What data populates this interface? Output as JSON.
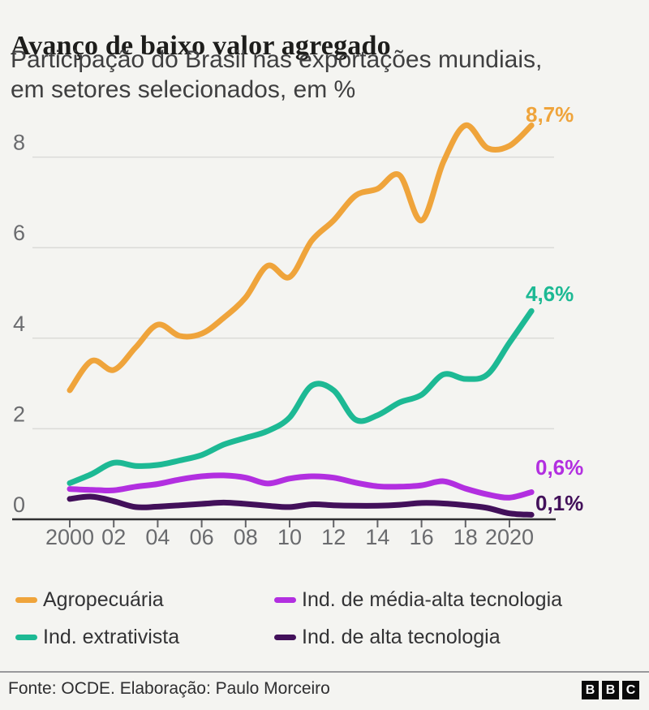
{
  "header": {
    "title": "Avanço de baixo valor agregado",
    "subtitle": "Participação do Brasil nas exportações mundiais,\nem setores selecionados, em %"
  },
  "chart_data": {
    "type": "line",
    "unit": "%",
    "x": [
      2000,
      2001,
      2002,
      2003,
      2004,
      2005,
      2006,
      2007,
      2008,
      2009,
      2010,
      2011,
      2012,
      2013,
      2014,
      2015,
      2016,
      2017,
      2018,
      2019,
      2020,
      2021
    ],
    "x_tick_labels": [
      "2000",
      "02",
      "04",
      "06",
      "08",
      "10",
      "12",
      "14",
      "16",
      "18",
      "2020"
    ],
    "y_ticks": [
      0,
      2,
      4,
      6,
      8
    ],
    "ylim": [
      0,
      9.2
    ],
    "grid": "horizontal",
    "legend_position": "bottom",
    "series": [
      {
        "name": "Agropecuária",
        "color": "#efa43b",
        "end_label": "8,7%",
        "values": [
          2.85,
          3.5,
          3.3,
          3.8,
          4.3,
          4.05,
          4.1,
          4.45,
          4.9,
          5.6,
          5.35,
          6.15,
          6.6,
          7.15,
          7.3,
          7.6,
          6.6,
          7.9,
          8.7,
          8.2,
          8.25,
          8.7
        ]
      },
      {
        "name": "Ind. extrativista",
        "color": "#1db994",
        "end_label": "4,6%",
        "values": [
          0.8,
          1.0,
          1.25,
          1.18,
          1.2,
          1.3,
          1.42,
          1.65,
          1.8,
          1.95,
          2.25,
          2.95,
          2.85,
          2.2,
          2.3,
          2.58,
          2.75,
          3.2,
          3.1,
          3.2,
          3.9,
          4.6
        ]
      },
      {
        "name": "Ind. de média-alta tecnologia",
        "color": "#b22fe0",
        "end_label": "0,6%",
        "values": [
          0.67,
          0.65,
          0.64,
          0.72,
          0.78,
          0.88,
          0.95,
          0.97,
          0.92,
          0.79,
          0.9,
          0.95,
          0.92,
          0.81,
          0.73,
          0.72,
          0.75,
          0.84,
          0.68,
          0.55,
          0.48,
          0.6
        ]
      },
      {
        "name": "Ind. de alta tecnologia",
        "color": "#42105a",
        "end_label": "0,1%",
        "values": [
          0.45,
          0.5,
          0.4,
          0.27,
          0.28,
          0.31,
          0.34,
          0.37,
          0.34,
          0.3,
          0.27,
          0.33,
          0.31,
          0.3,
          0.3,
          0.32,
          0.36,
          0.35,
          0.31,
          0.25,
          0.13,
          0.1
        ]
      }
    ]
  },
  "footer": {
    "source": "Fonte: OCDE. Elaboração: Paulo Morceiro",
    "logo": [
      "B",
      "B",
      "C"
    ]
  }
}
